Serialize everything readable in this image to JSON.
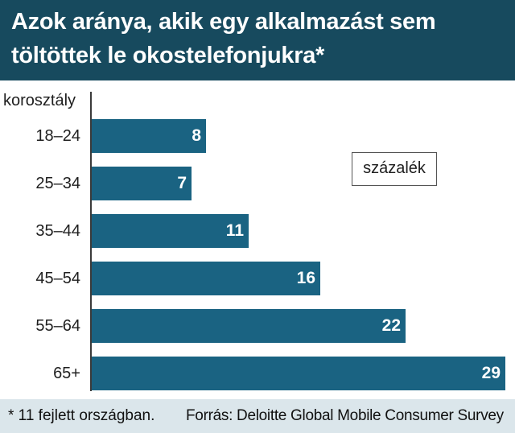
{
  "title": "Azok aránya, akik egy alkalmazást sem töltöttek le okostelefonjukra*",
  "colors": {
    "header": "#174a5e",
    "bar": "#1a6382",
    "footer": "#dbe6eb"
  },
  "chart_data": {
    "type": "bar",
    "orientation": "horizontal",
    "category_axis_label": "korosztály",
    "unit_label": "százalék",
    "categories": [
      "18–24",
      "25–34",
      "35–44",
      "45–54",
      "55–64",
      "65+"
    ],
    "values": [
      8,
      7,
      11,
      16,
      22,
      29
    ],
    "xlim": [
      0,
      29
    ]
  },
  "footer": {
    "footnote": "* 11 fejlett országban.",
    "source": "Forrás: Deloitte Global Mobile Consumer Survey"
  }
}
